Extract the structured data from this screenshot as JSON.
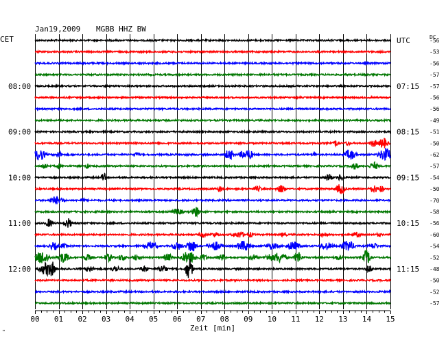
{
  "header": {
    "date_label": "Jan19,2009",
    "station_label": "MGBB HHZ BW",
    "left_timezone": "CET",
    "right_timezone": "UTC",
    "dc_label": "DC",
    "corner_mark": "\""
  },
  "chart_data": {
    "type": "line",
    "title": "Jan19,2009   MGBB HHZ BW",
    "xlabel": "Zeit [min]",
    "ylabel": "",
    "xlim": [
      0,
      15
    ],
    "x_tick_labels": [
      "00",
      "01",
      "02",
      "03",
      "04",
      "05",
      "06",
      "07",
      "08",
      "09",
      "10",
      "11",
      "12",
      "13",
      "14",
      "15"
    ],
    "grid": true,
    "trace_colors": [
      "#000000",
      "#ff0000",
      "#0000ff",
      "#007700"
    ],
    "left_hour_labels": [
      {
        "row": 4,
        "label": "08:00"
      },
      {
        "row": 8,
        "label": "09:00"
      },
      {
        "row": 12,
        "label": "10:00"
      },
      {
        "row": 16,
        "label": "11:00"
      },
      {
        "row": 20,
        "label": "12:00"
      }
    ],
    "right_hour_labels": [
      {
        "row": 0,
        "label": "UTC"
      },
      {
        "row": 4,
        "label": "07:15"
      },
      {
        "row": 8,
        "label": "08:15"
      },
      {
        "row": 12,
        "label": "09:15"
      },
      {
        "row": 16,
        "label": "10:15"
      },
      {
        "row": 20,
        "label": "11:15"
      }
    ],
    "dc_offsets": [
      "-56",
      "-53",
      "-56",
      "-57",
      "-57",
      "-56",
      "-56",
      "-49",
      "-51",
      "-50",
      "-62",
      "-57",
      "-54",
      "-50",
      "-70",
      "-58",
      "-56",
      "-60",
      "-54",
      "-52",
      "-48",
      "-50",
      "-52",
      "-57"
    ],
    "traces": [
      {
        "bursts": []
      },
      {
        "bursts": []
      },
      {
        "bursts": []
      },
      {
        "bursts": []
      },
      {
        "bursts": []
      },
      {
        "bursts": []
      },
      {
        "bursts": []
      },
      {
        "bursts": []
      },
      {
        "bursts": []
      },
      {
        "bursts": [
          {
            "t": 12.7,
            "a": 5,
            "w": 0.12
          },
          {
            "t": 13.2,
            "a": 5,
            "w": 0.1
          },
          {
            "t": 14.3,
            "a": 6,
            "w": 0.15
          },
          {
            "t": 14.7,
            "a": 8,
            "w": 0.2
          }
        ]
      },
      {
        "bursts": [
          {
            "t": 0.2,
            "a": 9,
            "w": 0.25
          },
          {
            "t": 1.0,
            "a": 5,
            "w": 0.15
          },
          {
            "t": 4.3,
            "a": 4,
            "w": 0.1
          },
          {
            "t": 8.2,
            "a": 8,
            "w": 0.2
          },
          {
            "t": 8.8,
            "a": 6,
            "w": 0.2
          },
          {
            "t": 9.0,
            "a": 8,
            "w": 0.2
          },
          {
            "t": 11.8,
            "a": 5,
            "w": 0.1
          },
          {
            "t": 13.3,
            "a": 8,
            "w": 0.25
          },
          {
            "t": 14.8,
            "a": 10,
            "w": 0.3
          }
        ]
      },
      {
        "bursts": [
          {
            "t": 0.4,
            "a": 5,
            "w": 0.15
          },
          {
            "t": 1.0,
            "a": 4,
            "w": 0.1
          },
          {
            "t": 2.2,
            "a": 4,
            "w": 0.1
          },
          {
            "t": 13.5,
            "a": 5,
            "w": 0.2
          },
          {
            "t": 14.3,
            "a": 6,
            "w": 0.2
          }
        ]
      },
      {
        "bursts": [
          {
            "t": 2.9,
            "a": 7,
            "w": 0.1
          },
          {
            "t": 12.4,
            "a": 6,
            "w": 0.15
          },
          {
            "t": 12.9,
            "a": 5,
            "w": 0.15
          }
        ]
      },
      {
        "bursts": [
          {
            "t": 7.8,
            "a": 5,
            "w": 0.12
          },
          {
            "t": 9.4,
            "a": 4,
            "w": 0.2
          },
          {
            "t": 10.4,
            "a": 6,
            "w": 0.2
          },
          {
            "t": 12.9,
            "a": 8,
            "w": 0.2
          },
          {
            "t": 14.3,
            "a": 6,
            "w": 0.2
          },
          {
            "t": 14.6,
            "a": 5,
            "w": 0.15
          }
        ]
      },
      {
        "bursts": [
          {
            "t": 0.9,
            "a": 6,
            "w": 0.3
          },
          {
            "t": 2.0,
            "a": 3,
            "w": 0.15
          }
        ]
      },
      {
        "bursts": [
          {
            "t": 2.6,
            "a": 3,
            "w": 0.1
          },
          {
            "t": 6.0,
            "a": 5,
            "w": 0.25
          },
          {
            "t": 6.8,
            "a": 8,
            "w": 0.15
          }
        ]
      },
      {
        "bursts": [
          {
            "t": 0.6,
            "a": 7,
            "w": 0.15
          },
          {
            "t": 1.4,
            "a": 8,
            "w": 0.15
          }
        ]
      },
      {
        "bursts": [
          {
            "t": 7.1,
            "a": 4,
            "w": 0.2
          },
          {
            "t": 7.6,
            "a": 4,
            "w": 0.2
          },
          {
            "t": 8.6,
            "a": 5,
            "w": 0.3
          },
          {
            "t": 9.1,
            "a": 4,
            "w": 0.15
          },
          {
            "t": 10.5,
            "a": 4,
            "w": 0.15
          },
          {
            "t": 12.2,
            "a": 4,
            "w": 0.15
          },
          {
            "t": 13.6,
            "a": 4,
            "w": 0.2
          },
          {
            "t": 14.5,
            "a": 3,
            "w": 0.15
          }
        ]
      },
      {
        "bursts": [
          {
            "t": 0.8,
            "a": 6,
            "w": 0.2
          },
          {
            "t": 1.2,
            "a": 4,
            "w": 0.15
          },
          {
            "t": 4.9,
            "a": 7,
            "w": 0.25
          },
          {
            "t": 6.0,
            "a": 6,
            "w": 0.25
          },
          {
            "t": 6.6,
            "a": 10,
            "w": 0.2
          },
          {
            "t": 7.6,
            "a": 7,
            "w": 0.3
          },
          {
            "t": 8.8,
            "a": 8,
            "w": 0.3
          },
          {
            "t": 10.0,
            "a": 5,
            "w": 0.3
          },
          {
            "t": 10.9,
            "a": 7,
            "w": 0.3
          },
          {
            "t": 12.3,
            "a": 6,
            "w": 0.3
          },
          {
            "t": 13.2,
            "a": 8,
            "w": 0.3
          },
          {
            "t": 14.3,
            "a": 5,
            "w": 0.2
          }
        ]
      },
      {
        "bursts": [
          {
            "t": 0.3,
            "a": 10,
            "w": 0.3
          },
          {
            "t": 1.2,
            "a": 8,
            "w": 0.25
          },
          {
            "t": 2.2,
            "a": 5,
            "w": 0.2
          },
          {
            "t": 3.1,
            "a": 6,
            "w": 0.2
          },
          {
            "t": 3.7,
            "a": 5,
            "w": 0.2
          },
          {
            "t": 4.3,
            "a": 5,
            "w": 0.2
          },
          {
            "t": 5.6,
            "a": 6,
            "w": 0.2
          },
          {
            "t": 6.5,
            "a": 10,
            "w": 0.3
          },
          {
            "t": 7.1,
            "a": 5,
            "w": 0.2
          },
          {
            "t": 7.9,
            "a": 5,
            "w": 0.2
          },
          {
            "t": 9.2,
            "a": 5,
            "w": 0.2
          },
          {
            "t": 9.9,
            "a": 6,
            "w": 0.2
          },
          {
            "t": 10.3,
            "a": 8,
            "w": 0.3
          },
          {
            "t": 11.1,
            "a": 10,
            "w": 0.15
          },
          {
            "t": 12.8,
            "a": 4,
            "w": 0.2
          },
          {
            "t": 14.0,
            "a": 12,
            "w": 0.15
          }
        ]
      },
      {
        "bursts": [
          {
            "t": 0.5,
            "a": 10,
            "w": 0.3
          },
          {
            "t": 0.7,
            "a": 12,
            "w": 0.15
          },
          {
            "t": 2.3,
            "a": 5,
            "w": 0.2
          },
          {
            "t": 3.4,
            "a": 5,
            "w": 0.2
          },
          {
            "t": 4.6,
            "a": 5,
            "w": 0.2
          },
          {
            "t": 5.4,
            "a": 6,
            "w": 0.2
          },
          {
            "t": 6.5,
            "a": 16,
            "w": 0.15
          },
          {
            "t": 14.1,
            "a": 6,
            "w": 0.15
          }
        ]
      },
      {
        "bursts": []
      },
      {
        "bursts": []
      },
      {
        "bursts": []
      }
    ]
  }
}
